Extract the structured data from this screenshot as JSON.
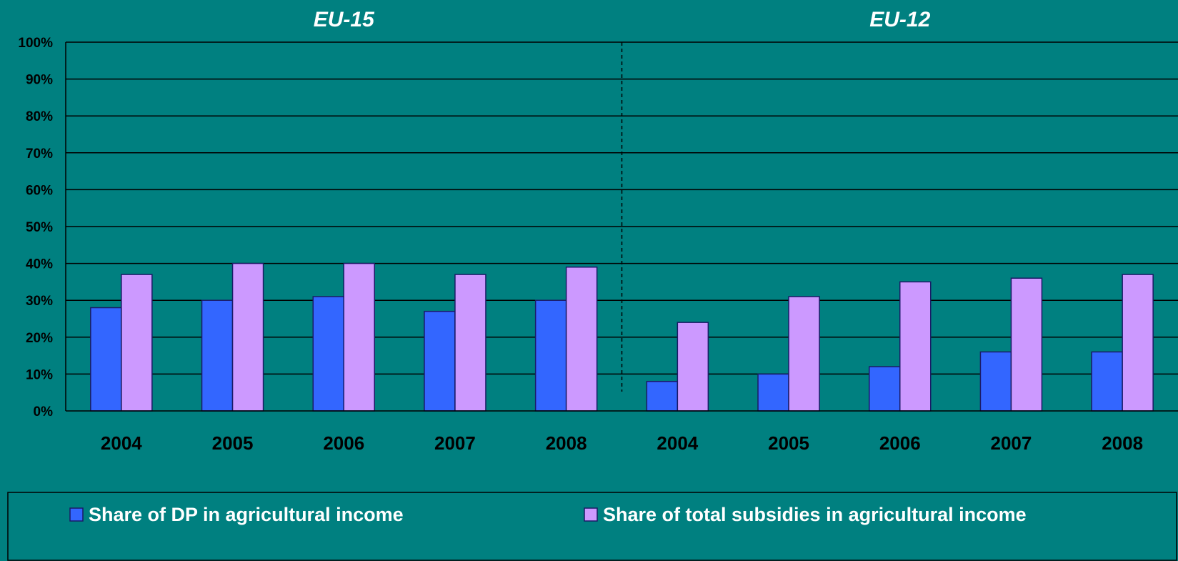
{
  "chart_data": {
    "type": "bar",
    "groups": [
      {
        "title": "EU-15",
        "categories": [
          "2004",
          "2005",
          "2006",
          "2007",
          "2008"
        ]
      },
      {
        "title": "EU-12",
        "categories": [
          "2004",
          "2005",
          "2006",
          "2007",
          "2008"
        ]
      }
    ],
    "series": [
      {
        "name": "Share of DP in agricultural income",
        "color": "#3366FF",
        "values": [
          28,
          30,
          31,
          27,
          30,
          8,
          10,
          12,
          16,
          16
        ]
      },
      {
        "name": "Share of total subsidies in agricultural income",
        "color": "#CC99FF",
        "values": [
          37,
          40,
          40,
          37,
          39,
          24,
          31,
          35,
          36,
          37
        ]
      }
    ],
    "yticks": [
      "0%",
      "10%",
      "20%",
      "30%",
      "40%",
      "50%",
      "60%",
      "70%",
      "80%",
      "90%",
      "100%"
    ],
    "ylim": [
      0,
      100
    ],
    "grid": true,
    "legend_position": "bottom"
  }
}
